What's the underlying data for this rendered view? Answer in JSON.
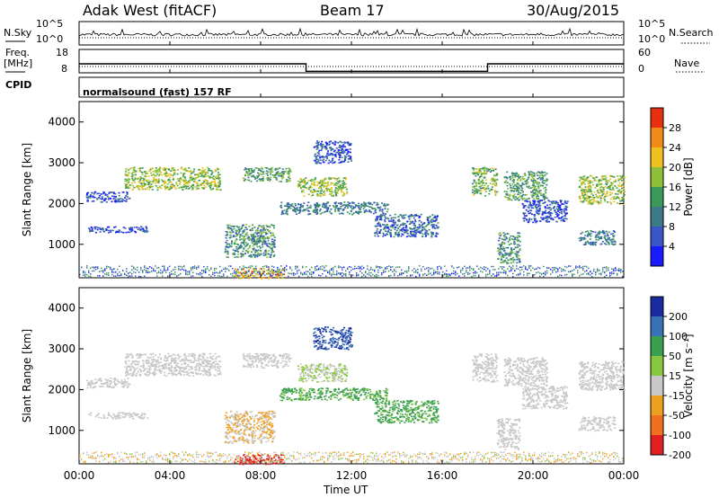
{
  "header": {
    "station": "Adak West (fitACF)",
    "beam": "Beam 17",
    "date": "30/Aug/2015"
  },
  "sky_panel": {
    "left_label": "N.Sky",
    "right_label": "N.Search",
    "left_ticks": [
      "10^5",
      "10^0"
    ],
    "right_ticks": [
      "10^5",
      "10^0"
    ]
  },
  "freq_panel": {
    "label_line1": "Freq.",
    "label_line2": "[MHz]",
    "left_ticks": [
      "18",
      "8"
    ],
    "right_label": "Nave",
    "right_ticks": [
      "60",
      "0"
    ],
    "segments_mhz": [
      {
        "t0": 0.0,
        "t1": 10.0,
        "f": 13.0
      },
      {
        "t0": 10.0,
        "t1": 18.0,
        "f": 9.8
      },
      {
        "t0": 18.0,
        "t1": 24.0,
        "f": 13.0
      }
    ]
  },
  "cpid": {
    "label": "CPID",
    "text": "normalsound (fast) 157 RF"
  },
  "x_axis": {
    "ticks": [
      "00:00",
      "04:00",
      "08:00",
      "12:00",
      "16:00",
      "20:00",
      "00:00"
    ],
    "title": "Time UT"
  },
  "power_panel": {
    "ylabel": "Slant Range [km]",
    "yticks": [
      "1000",
      "2000",
      "3000",
      "4000"
    ],
    "colorbar_title": "Power [dB]",
    "colorbar_ticks": [
      "4",
      "8",
      "12",
      "16",
      "20",
      "24",
      "28"
    ],
    "colors": [
      "#1a1aff",
      "#3a55c8",
      "#3c7a8a",
      "#3a9a5a",
      "#8ec03a",
      "#f0c020",
      "#f08a18",
      "#e83010"
    ]
  },
  "velocity_panel": {
    "ylabel": "Slant Range [km]",
    "yticks": [
      "1000",
      "2000",
      "3000",
      "4000"
    ],
    "colorbar_title": "Velocity [m s⁻¹]",
    "colorbar_ticks": [
      "200",
      "100",
      "50",
      "15",
      "-15",
      "-50",
      "-100",
      "-200"
    ],
    "colors": [
      "#1a2aa0",
      "#3a70b8",
      "#3aa050",
      "#88c840",
      "#c8c8c8",
      "#f0a020",
      "#f07020",
      "#e02020"
    ]
  },
  "chart_data": {
    "type": "heatmap",
    "x_range_hours": [
      0,
      24
    ],
    "y_range_km": [
      180,
      4500
    ],
    "echo_regions": [
      {
        "t0": 0.3,
        "t1": 2.2,
        "r0": 2050,
        "r1": 2300,
        "power": 8,
        "vel": 0
      },
      {
        "t0": 2.0,
        "t1": 6.2,
        "r0": 2350,
        "r1": 2900,
        "power": 20,
        "vel": 0
      },
      {
        "t0": 7.2,
        "t1": 9.3,
        "r0": 2550,
        "r1": 2900,
        "power": 16,
        "vel": 0
      },
      {
        "t0": 0.4,
        "t1": 3.0,
        "r0": 1300,
        "r1": 1450,
        "power": 8,
        "vel": 0
      },
      {
        "t0": 6.4,
        "t1": 8.6,
        "r0": 700,
        "r1": 1500,
        "power": 14,
        "vel": -15
      },
      {
        "t0": 9.6,
        "t1": 11.8,
        "r0": 2200,
        "r1": 2650,
        "power": 20,
        "vel": 15
      },
      {
        "t0": 10.3,
        "t1": 12.0,
        "r0": 3000,
        "r1": 3550,
        "power": 8,
        "vel": 150
      },
      {
        "t0": 8.8,
        "t1": 13.6,
        "r0": 1750,
        "r1": 2050,
        "power": 12,
        "vel": 40
      },
      {
        "t0": 13.0,
        "t1": 15.8,
        "r0": 1200,
        "r1": 1750,
        "power": 10,
        "vel": 40
      },
      {
        "t0": 17.3,
        "t1": 18.4,
        "r0": 2200,
        "r1": 2900,
        "power": 18,
        "vel": 0
      },
      {
        "t0": 18.4,
        "t1": 19.4,
        "r0": 550,
        "r1": 1300,
        "power": 14,
        "vel": 0
      },
      {
        "t0": 18.7,
        "t1": 20.6,
        "r0": 2100,
        "r1": 2800,
        "power": 16,
        "vel": 0
      },
      {
        "t0": 19.5,
        "t1": 21.5,
        "r0": 1550,
        "r1": 2100,
        "power": 8,
        "vel": 0
      },
      {
        "t0": 22.0,
        "t1": 24.0,
        "r0": 2000,
        "r1": 2700,
        "power": 20,
        "vel": 0
      },
      {
        "t0": 22.0,
        "t1": 23.6,
        "r0": 1000,
        "r1": 1350,
        "power": 12,
        "vel": 0
      },
      {
        "t0": 6.8,
        "t1": 9.0,
        "r0": 180,
        "r1": 420,
        "power": 26,
        "vel": -200
      }
    ]
  }
}
